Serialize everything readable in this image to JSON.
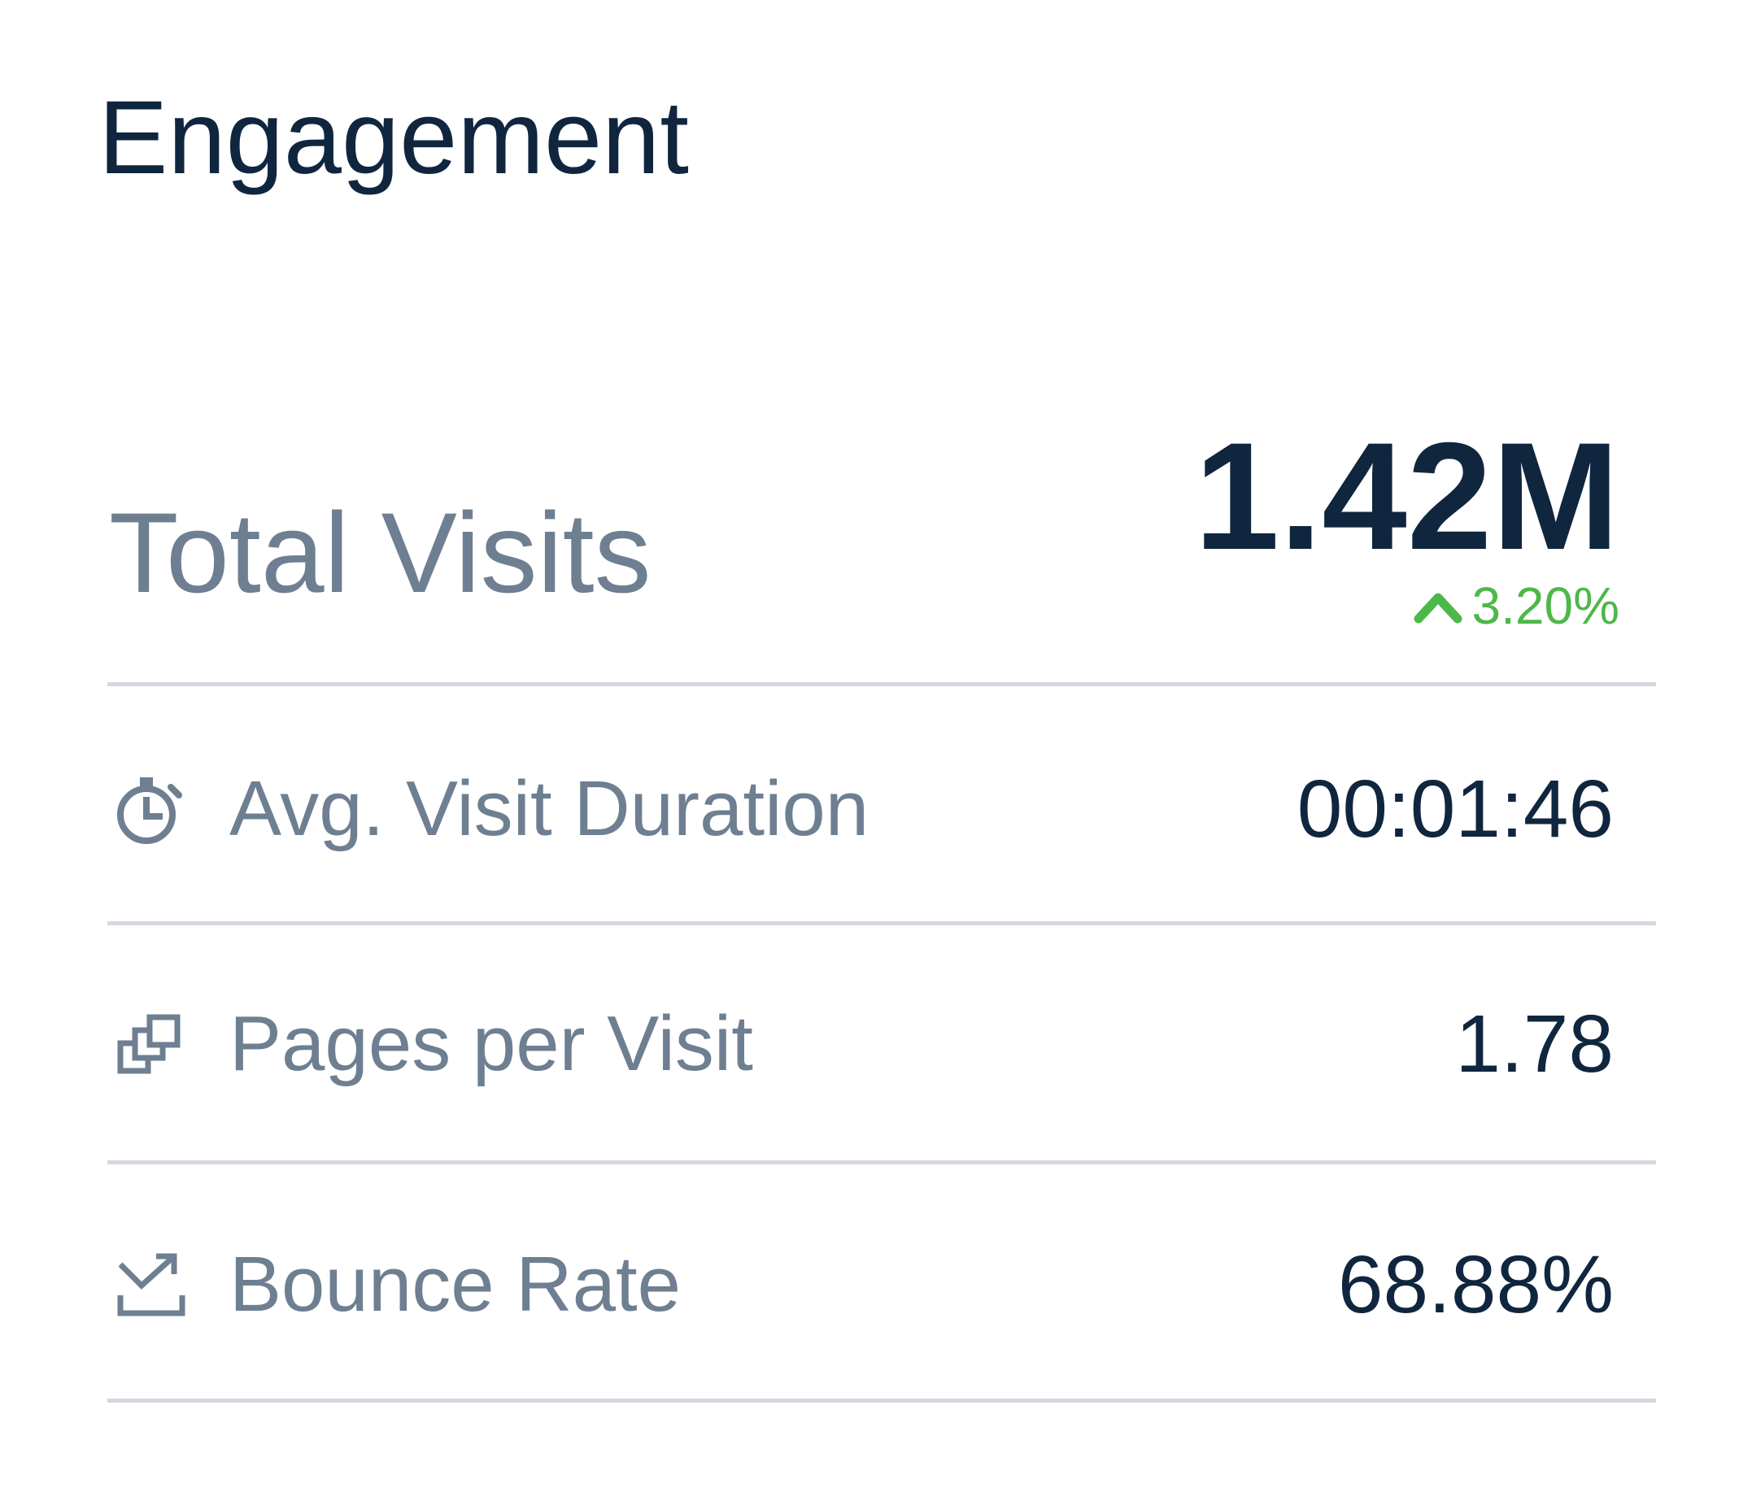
{
  "card": {
    "title": "Engagement",
    "total_visits": {
      "label": "Total Visits",
      "value": "1.42M",
      "change": "3.20%",
      "trend": "up",
      "trend_color": "#4db84a",
      "trend_icon": "chevron-up-icon"
    },
    "metrics": [
      {
        "label": "Avg. Visit Duration",
        "value": "00:01:46",
        "icon": "stopwatch-icon"
      },
      {
        "label": "Pages per Visit",
        "value": "1.78",
        "icon": "pages-stack-icon"
      },
      {
        "label": "Bounce Rate",
        "value": "68.88%",
        "icon": "bounce-arrow-icon"
      }
    ]
  },
  "colors": {
    "title_text": "#10263f",
    "label_text": "#6e7f91",
    "value_text": "#10263f",
    "divider": "#d3d9de",
    "positive": "#4db84a"
  }
}
